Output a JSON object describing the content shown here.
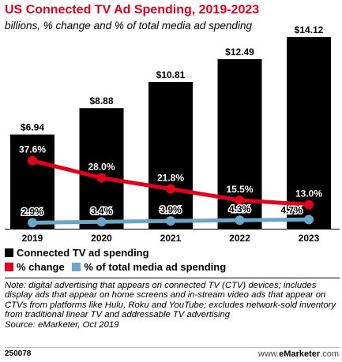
{
  "chart_data": {
    "type": "bar",
    "title": "US Connected TV Ad Spending, 2019-2023",
    "subtitle": "billions, % change and % of total media ad spending",
    "categories": [
      "2019",
      "2020",
      "2021",
      "2022",
      "2023"
    ],
    "series": [
      {
        "name": "Connected TV ad spending",
        "type": "bar",
        "color": "#000000",
        "values": [
          6.94,
          8.88,
          10.81,
          12.49,
          14.12
        ],
        "labels": [
          "$6.94",
          "$8.88",
          "$10.81",
          "$12.49",
          "$14.12"
        ]
      },
      {
        "name": "% change",
        "type": "line",
        "color": "#e3001b",
        "values": [
          37.6,
          28.0,
          21.8,
          15.5,
          13.0
        ],
        "labels": [
          "37.6%",
          "28.0%",
          "21.8%",
          "15.5%",
          "13.0%"
        ]
      },
      {
        "name": "% of total media ad spending",
        "type": "line",
        "color": "#6aa6c8",
        "values": [
          2.9,
          3.4,
          3.9,
          4.3,
          4.7
        ],
        "labels": [
          "2.9%",
          "3.4%",
          "3.9%",
          "4.3%",
          "4.7%"
        ]
      }
    ],
    "grid": false,
    "legend_position": "bottom-left"
  },
  "note": "Note: digital advertising that appears on connected TV (CTV) devices; includes display ads that appear on home screens and in-stream video ads that appear on CTVs from platforms like Hulu, Roku and YouTube; excludes network-sold inventory from traditional linear TV and addressable TV advertising",
  "source": "Source: eMarketer, Oct 2019",
  "footer": {
    "id": "250078",
    "brand_prefix": "www.",
    "brand_name": "eMarketer",
    "brand_suffix": ".com"
  }
}
